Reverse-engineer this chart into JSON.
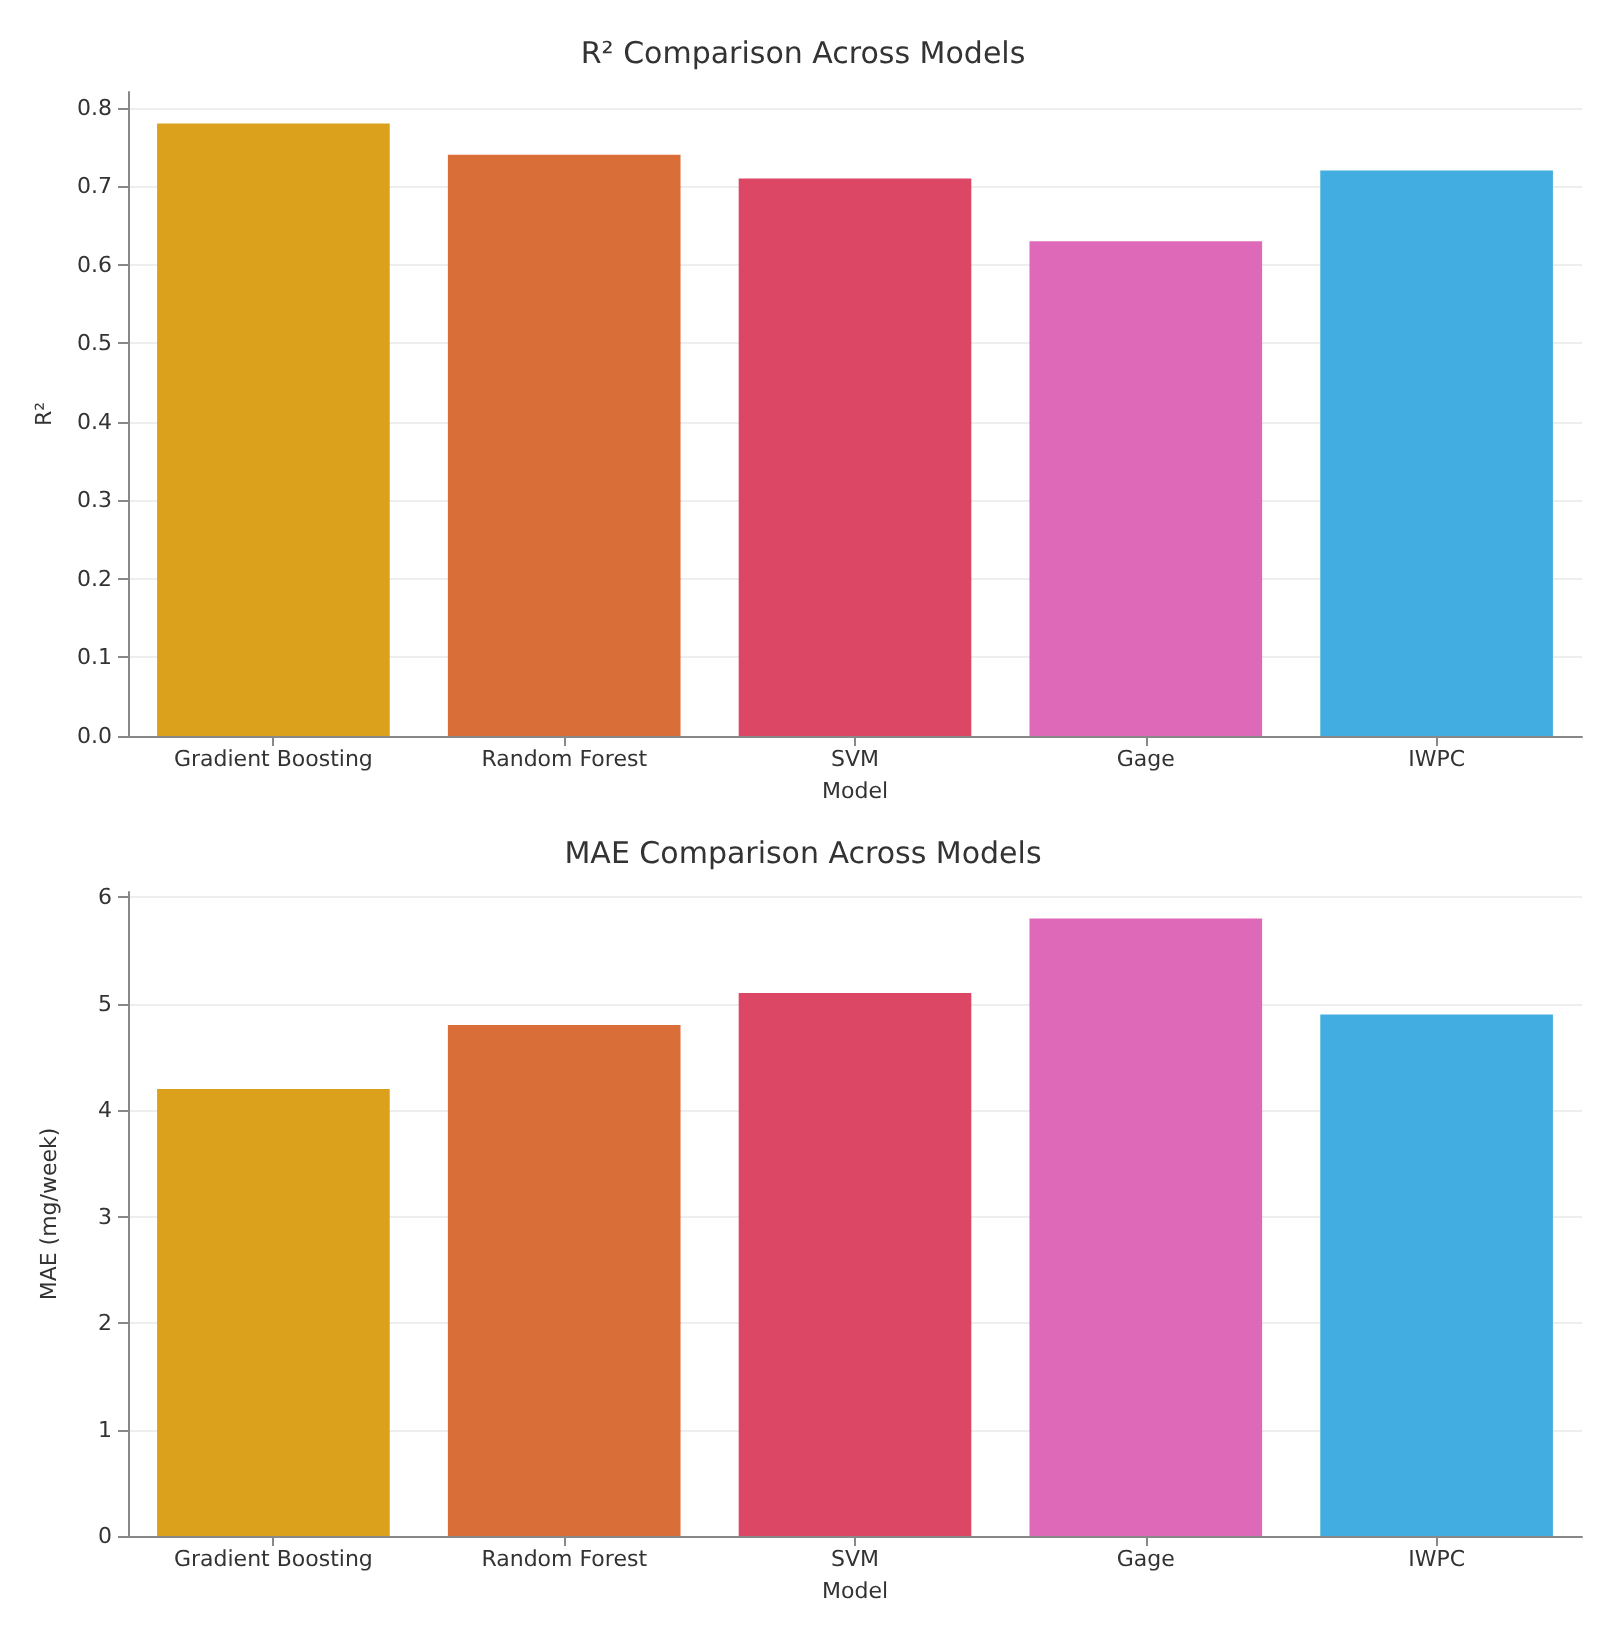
{
  "chart_data": [
    {
      "type": "bar",
      "title": "R² Comparison Across Models",
      "xlabel": "Model",
      "ylabel": "R²",
      "categories": [
        "Gradient Boosting",
        "Random Forest",
        "SVM",
        "Gage",
        "IWPC"
      ],
      "values": [
        0.78,
        0.74,
        0.71,
        0.63,
        0.72
      ],
      "colors": [
        "#dba11c",
        "#d96e38",
        "#db4764",
        "#df69b9",
        "#42ade0"
      ],
      "ylim": [
        0,
        0.82
      ],
      "yticks": [
        {
          "value": 0,
          "label": "0.0"
        },
        0.1,
        0.2,
        0.3,
        0.4,
        0.5,
        0.6,
        0.7,
        0.8
      ],
      "grid": "y"
    },
    {
      "type": "bar",
      "title": "MAE Comparison Across Models",
      "xlabel": "Model",
      "ylabel": "MAE (mg/week)",
      "categories": [
        "Gradient Boosting",
        "Random Forest",
        "SVM",
        "Gage",
        "IWPC"
      ],
      "values": [
        4.2,
        4.8,
        5.1,
        5.8,
        4.9
      ],
      "colors": [
        "#dba11c",
        "#d96e38",
        "#db4764",
        "#df69b9",
        "#42ade0"
      ],
      "ylim": [
        0,
        6.05
      ],
      "yticks": [
        0,
        1,
        2,
        3,
        4,
        5,
        6
      ],
      "grid": "y"
    }
  ]
}
